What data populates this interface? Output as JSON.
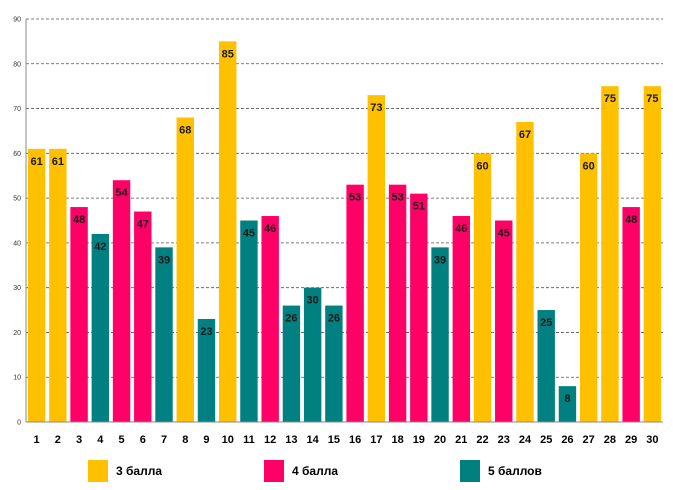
{
  "chart_data": {
    "type": "bar",
    "title": "",
    "xlabel": "",
    "ylabel": "",
    "ylim": [
      0,
      90
    ],
    "yticks": [
      0,
      10,
      20,
      30,
      40,
      50,
      60,
      70,
      80,
      90
    ],
    "grid": true,
    "legend_position": "bottom",
    "categories": [
      "1",
      "2",
      "3",
      "4",
      "5",
      "6",
      "7",
      "8",
      "9",
      "10",
      "11",
      "12",
      "13",
      "14",
      "15",
      "16",
      "17",
      "18",
      "19",
      "20",
      "21",
      "22",
      "23",
      "24",
      "25",
      "26",
      "27",
      "28",
      "29",
      "30"
    ],
    "values": [
      61,
      61,
      48,
      42,
      54,
      47,
      39,
      68,
      23,
      85,
      45,
      46,
      26,
      30,
      26,
      53,
      73,
      53,
      51,
      39,
      46,
      60,
      45,
      67,
      25,
      8,
      60,
      75,
      48,
      75
    ],
    "groups": [
      "3",
      "3",
      "4",
      "5",
      "4",
      "4",
      "5",
      "3",
      "5",
      "3",
      "5",
      "4",
      "5",
      "5",
      "5",
      "4",
      "3",
      "4",
      "4",
      "5",
      "4",
      "3",
      "4",
      "3",
      "5",
      "5",
      "3",
      "3",
      "4",
      "3"
    ],
    "legend": [
      {
        "key": "3",
        "label": "3 балла",
        "color": "#FFC000"
      },
      {
        "key": "4",
        "label": "4 балла",
        "color": "#FF0066"
      },
      {
        "key": "5",
        "label": "5 баллов",
        "color": "#008080"
      }
    ]
  }
}
